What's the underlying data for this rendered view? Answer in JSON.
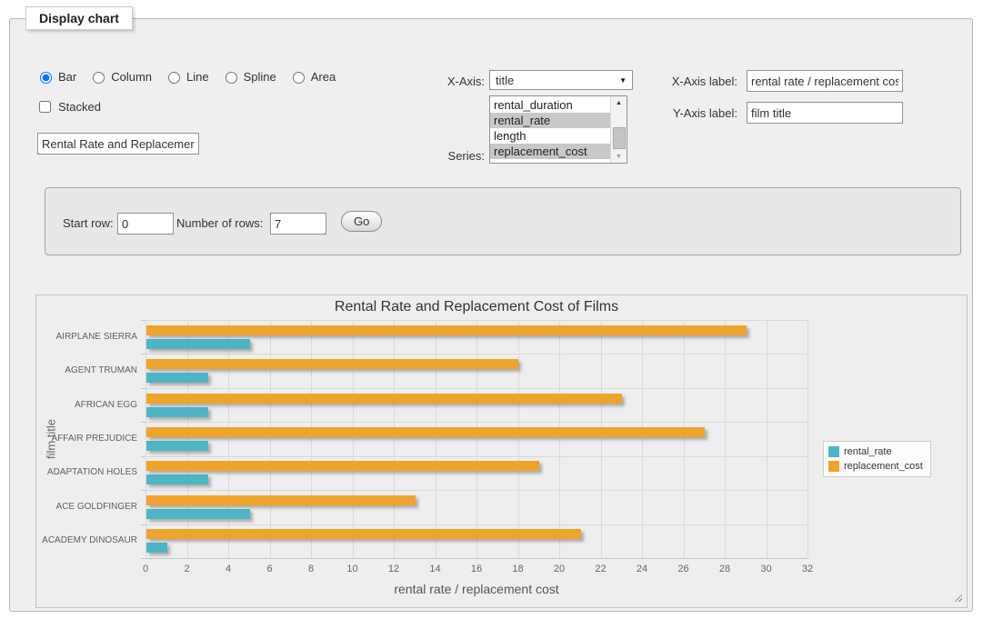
{
  "panel": {
    "legend": "Display chart"
  },
  "chart_type_options": [
    {
      "label": "Bar",
      "checked": true
    },
    {
      "label": "Column",
      "checked": false
    },
    {
      "label": "Line",
      "checked": false
    },
    {
      "label": "Spline",
      "checked": false
    },
    {
      "label": "Area",
      "checked": false
    }
  ],
  "stacked": {
    "label": "Stacked",
    "checked": false
  },
  "chart_title_input": "Rental Rate and Replacemer",
  "x_axis": {
    "label": "X-Axis:",
    "value": "title"
  },
  "series": {
    "label": "Series:",
    "options": [
      {
        "label": "rental_duration",
        "selected": false
      },
      {
        "label": "rental_rate",
        "selected": true
      },
      {
        "label": "length",
        "selected": false
      },
      {
        "label": "replacement_cost",
        "selected": true
      }
    ]
  },
  "x_axis_label": {
    "label": "X-Axis label:",
    "value": "rental rate / replacement cost"
  },
  "y_axis_label": {
    "label": "Y-Axis label:",
    "value": "film title"
  },
  "row_controls": {
    "start_row_label": "Start row:",
    "start_row_value": "0",
    "num_rows_label": "Number of rows:",
    "num_rows_value": "7",
    "go_label": "Go"
  },
  "icons": {
    "select_arrow": "▼",
    "scroll_up": "▲",
    "scroll_down": "▼"
  },
  "colors": {
    "selection": "#c8c8c8",
    "grid": "#d9d9d9"
  },
  "chart_data": {
    "type": "bar",
    "title": "Rental Rate and Replacement Cost of Films",
    "xlabel": "rental rate / replacement cost",
    "ylabel": "film title",
    "xlim": [
      0,
      32
    ],
    "tick_step": 2,
    "grid": true,
    "legend_position": "right",
    "categories": [
      "AIRPLANE SIERRA",
      "AGENT TRUMAN",
      "AFRICAN EGG",
      "AFFAIR PREJUDICE",
      "ADAPTATION HOLES",
      "ACE GOLDFINGER",
      "ACADEMY DINOSAUR"
    ],
    "series": [
      {
        "name": "rental_rate",
        "color": "#4FB5C5",
        "values": [
          4.99,
          2.99,
          2.99,
          2.99,
          2.99,
          4.99,
          0.99
        ]
      },
      {
        "name": "replacement_cost",
        "color": "#EDA42C",
        "values": [
          28.99,
          17.99,
          22.99,
          26.99,
          18.99,
          12.99,
          20.99
        ]
      }
    ]
  }
}
